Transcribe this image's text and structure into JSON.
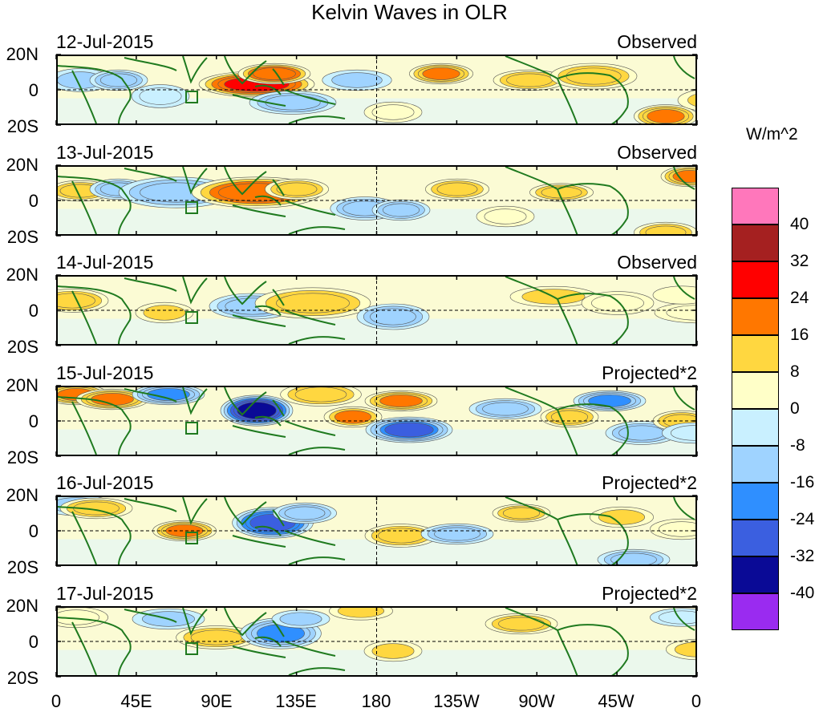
{
  "title": "Kelvin Waves in OLR",
  "panels": [
    {
      "date": "12-Jul-2015",
      "label": "Observed"
    },
    {
      "date": "13-Jul-2015",
      "label": "Observed"
    },
    {
      "date": "14-Jul-2015",
      "label": "Observed"
    },
    {
      "date": "15-Jul-2015",
      "label": "Projected*2"
    },
    {
      "date": "16-Jul-2015",
      "label": "Projected*2"
    },
    {
      "date": "17-Jul-2015",
      "label": "Projected*2"
    }
  ],
  "lat_ticks": [
    "20N",
    "0",
    "20S"
  ],
  "lon_ticks": [
    "0",
    "45E",
    "90E",
    "135E",
    "180",
    "135W",
    "90W",
    "45W",
    "0"
  ],
  "colorbar": {
    "unit": "W/m^2",
    "labels": [
      "40",
      "32",
      "24",
      "16",
      "8",
      "0",
      "-8",
      "-16",
      "-24",
      "-32",
      "-40"
    ],
    "colors": [
      "#ff77bb",
      "#a52020",
      "#ff0000",
      "#ff7700",
      "#ffd740",
      "#ffffc8",
      "#c9f0ff",
      "#9fd3ff",
      "#2f8fff",
      "#3b5fe0",
      "#0a0a96",
      "#9a2bf0"
    ]
  },
  "anomalies": [
    [
      [
        30,
        100,
        22,
        9,
        -12
      ],
      [
        78,
        100,
        20,
        8,
        -20
      ],
      [
        250,
        105,
        40,
        10,
        36
      ],
      [
        272,
        92,
        25,
        8,
        30
      ],
      [
        295,
        128,
        30,
        9,
        -16
      ],
      [
        375,
        100,
        24,
        8,
        -12
      ],
      [
        480,
        92,
        22,
        8,
        24
      ],
      [
        590,
        100,
        25,
        8,
        20
      ],
      [
        670,
        95,
        30,
        10,
        16
      ],
      [
        760,
        145,
        22,
        9,
        24
      ],
      [
        820,
        125,
        25,
        9,
        12
      ],
      [
        130,
        120,
        20,
        9,
        -8
      ],
      [
        420,
        140,
        20,
        8,
        8
      ]
    ],
    [
      [
        30,
        238,
        22,
        8,
        18
      ],
      [
        78,
        236,
        20,
        8,
        -16
      ],
      [
        150,
        240,
        40,
        12,
        -20
      ],
      [
        250,
        240,
        45,
        12,
        28
      ],
      [
        300,
        236,
        22,
        8,
        20
      ],
      [
        385,
        260,
        24,
        9,
        -20
      ],
      [
        430,
        262,
        20,
        8,
        -16
      ],
      [
        500,
        236,
        22,
        8,
        16
      ],
      [
        630,
        240,
        22,
        7,
        20
      ],
      [
        790,
        220,
        20,
        8,
        24
      ],
      [
        760,
        290,
        22,
        8,
        16
      ],
      [
        560,
        270,
        20,
        8,
        8
      ]
    ],
    [
      [
        20,
        375,
        25,
        9,
        16
      ],
      [
        135,
        390,
        20,
        8,
        12
      ],
      [
        245,
        382,
        30,
        10,
        -20
      ],
      [
        320,
        378,
        40,
        12,
        16
      ],
      [
        420,
        395,
        25,
        10,
        -16
      ],
      [
        620,
        370,
        30,
        8,
        12
      ],
      [
        700,
        378,
        25,
        9,
        10
      ],
      [
        800,
        390,
        30,
        8,
        8
      ],
      [
        780,
        368,
        20,
        7,
        6
      ]
    ],
    [
      [
        25,
        492,
        22,
        8,
        26
      ],
      [
        70,
        498,
        25,
        8,
        24
      ],
      [
        140,
        492,
        25,
        8,
        -24
      ],
      [
        250,
        512,
        25,
        12,
        -44
      ],
      [
        330,
        492,
        28,
        9,
        20
      ],
      [
        370,
        520,
        20,
        8,
        22
      ],
      [
        430,
        500,
        25,
        8,
        24
      ],
      [
        440,
        536,
        30,
        10,
        -32
      ],
      [
        560,
        510,
        25,
        8,
        -20
      ],
      [
        640,
        520,
        20,
        8,
        16
      ],
      [
        690,
        500,
        25,
        8,
        -24
      ],
      [
        730,
        540,
        25,
        9,
        -16
      ],
      [
        780,
        525,
        20,
        8,
        16
      ],
      [
        795,
        540,
        22,
        8,
        -8
      ]
    ],
    [
      [
        25,
        630,
        25,
        8,
        -12
      ],
      [
        50,
        634,
        25,
        8,
        20
      ],
      [
        160,
        662,
        22,
        8,
        24
      ],
      [
        270,
        652,
        28,
        12,
        -36
      ],
      [
        310,
        640,
        22,
        8,
        -20
      ],
      [
        430,
        668,
        25,
        9,
        18
      ],
      [
        500,
        666,
        25,
        8,
        -16
      ],
      [
        580,
        640,
        20,
        7,
        16
      ],
      [
        705,
        645,
        22,
        8,
        12
      ],
      [
        720,
        698,
        25,
        8,
        -20
      ],
      [
        780,
        660,
        22,
        8,
        8
      ]
    ],
    [
      [
        25,
        770,
        22,
        8,
        10
      ],
      [
        140,
        772,
        25,
        8,
        -12
      ],
      [
        200,
        795,
        28,
        9,
        20
      ],
      [
        280,
        790,
        28,
        12,
        -24
      ],
      [
        305,
        772,
        20,
        7,
        -12
      ],
      [
        380,
        762,
        22,
        7,
        12
      ],
      [
        420,
        812,
        20,
        8,
        12
      ],
      [
        580,
        778,
        25,
        8,
        18
      ],
      [
        780,
        770,
        22,
        7,
        -8
      ],
      [
        800,
        810,
        22,
        8,
        12
      ]
    ]
  ]
}
